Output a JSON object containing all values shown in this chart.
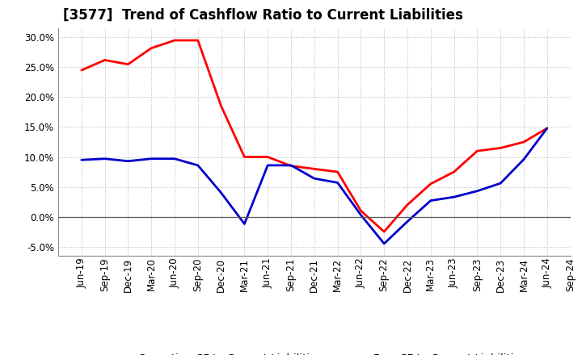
{
  "title": "[3577]  Trend of Cashflow Ratio to Current Liabilities",
  "xlabels": [
    "Jun-19",
    "Sep-19",
    "Dec-19",
    "Mar-20",
    "Jun-20",
    "Sep-20",
    "Dec-20",
    "Mar-21",
    "Jun-21",
    "Sep-21",
    "Dec-21",
    "Mar-22",
    "Jun-22",
    "Sep-22",
    "Dec-22",
    "Mar-23",
    "Jun-23",
    "Sep-23",
    "Dec-23",
    "Mar-24",
    "Jun-24",
    "Sep-24"
  ],
  "operating_cf": [
    0.245,
    0.262,
    0.255,
    0.282,
    0.295,
    0.295,
    0.185,
    0.1,
    0.1,
    0.085,
    0.08,
    0.075,
    0.01,
    -0.025,
    0.02,
    0.055,
    0.075,
    0.11,
    0.115,
    0.125,
    0.148,
    null
  ],
  "free_cf": [
    0.095,
    0.097,
    0.093,
    0.097,
    0.097,
    0.086,
    0.04,
    -0.012,
    0.086,
    0.086,
    0.064,
    0.057,
    0.003,
    -0.045,
    -0.008,
    0.027,
    0.033,
    0.043,
    0.056,
    0.096,
    0.148,
    null
  ],
  "operating_color": "#ff0000",
  "free_color": "#0000cc",
  "background_color": "#ffffff",
  "grid_color": "#aaaaaa",
  "ylim": [
    -0.065,
    0.315
  ],
  "yticks": [
    -0.05,
    0.0,
    0.05,
    0.1,
    0.15,
    0.2,
    0.25,
    0.3
  ],
  "legend_labels": [
    "Operating CF to Current Liabilities",
    "Free CF to Current Liabilities"
  ],
  "title_fontsize": 12,
  "tick_fontsize": 8.5,
  "legend_fontsize": 9.5,
  "linewidth": 2.0
}
